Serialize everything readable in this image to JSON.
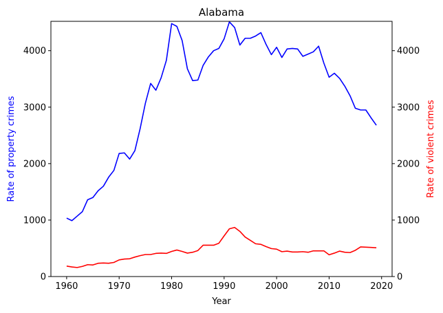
{
  "chart_data": {
    "type": "line",
    "title": "Alabama",
    "xlabel": "Year",
    "ylabel_left": "Rate of property crimes",
    "ylabel_right": "Rate of violent crimes",
    "xlim": [
      1957,
      2022
    ],
    "ylim": [
      0,
      4520
    ],
    "x_ticks": [
      1960,
      1970,
      1980,
      1990,
      2000,
      2010,
      2020
    ],
    "y_ticks": [
      0,
      1000,
      2000,
      3000,
      4000
    ],
    "grid": false,
    "x": [
      1960,
      1961,
      1962,
      1963,
      1964,
      1965,
      1966,
      1967,
      1968,
      1969,
      1970,
      1971,
      1972,
      1973,
      1974,
      1975,
      1976,
      1977,
      1978,
      1979,
      1980,
      1981,
      1982,
      1983,
      1984,
      1985,
      1986,
      1987,
      1988,
      1989,
      1990,
      1991,
      1992,
      1993,
      1994,
      1995,
      1996,
      1997,
      1998,
      1999,
      2000,
      2001,
      2002,
      2003,
      2004,
      2005,
      2006,
      2007,
      2008,
      2009,
      2010,
      2011,
      2012,
      2013,
      2014,
      2015,
      2016,
      2017,
      2018,
      2019
    ],
    "series": [
      {
        "name": "Rate of property crimes",
        "axis": "left",
        "color": "#0000ff",
        "values": [
          1035,
          990,
          1070,
          1150,
          1360,
          1400,
          1520,
          1600,
          1760,
          1880,
          2180,
          2190,
          2080,
          2230,
          2620,
          3070,
          3420,
          3300,
          3520,
          3830,
          4480,
          4430,
          4180,
          3680,
          3470,
          3480,
          3740,
          3890,
          4000,
          4040,
          4210,
          4510,
          4410,
          4100,
          4220,
          4220,
          4260,
          4320,
          4110,
          3930,
          4060,
          3880,
          4030,
          4040,
          4030,
          3900,
          3940,
          3980,
          4080,
          3780,
          3530,
          3600,
          3510,
          3370,
          3200,
          2980,
          2950,
          2950,
          2810,
          2680
        ]
      },
      {
        "name": "Rate of violent crimes",
        "axis": "right",
        "color": "#ff0000",
        "values": [
          185,
          170,
          160,
          180,
          210,
          205,
          235,
          240,
          235,
          250,
          295,
          310,
          315,
          345,
          370,
          390,
          390,
          410,
          415,
          410,
          445,
          470,
          445,
          415,
          430,
          460,
          555,
          555,
          555,
          590,
          720,
          845,
          870,
          800,
          700,
          640,
          580,
          570,
          530,
          495,
          485,
          440,
          450,
          435,
          435,
          440,
          430,
          455,
          455,
          455,
          385,
          415,
          450,
          430,
          425,
          465,
          525,
          520,
          515,
          510
        ]
      }
    ]
  }
}
